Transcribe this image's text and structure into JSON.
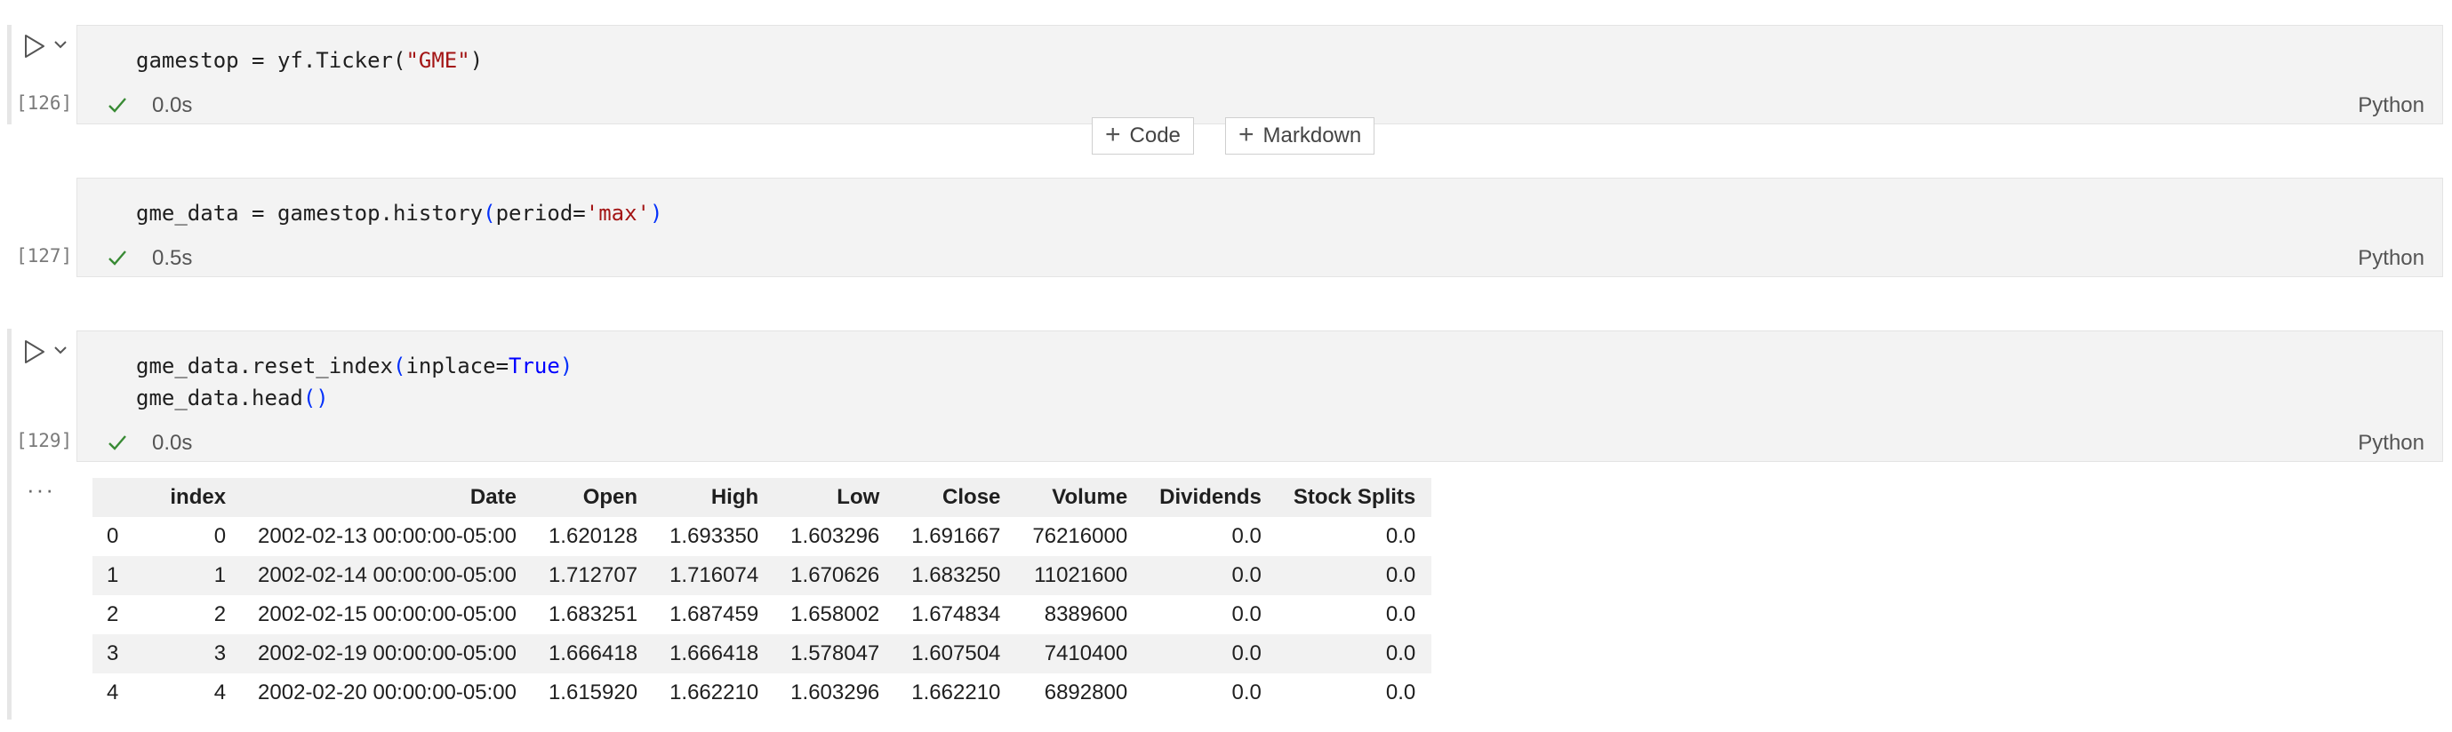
{
  "cells": [
    {
      "exec_count": "[126]",
      "code": [
        [
          "gamestop = yf.Ticker(",
          "\"GME\"",
          ")"
        ]
      ],
      "duration": "0.0s",
      "language": "Python"
    },
    {
      "exec_count": "[127]",
      "code": [
        [
          "gme_data = gamestop.history",
          "(",
          "period=",
          "'max'",
          ")"
        ]
      ],
      "duration": "0.5s",
      "language": "Python"
    },
    {
      "exec_count": "[129]",
      "code": [
        [
          "gme_data.reset_index",
          "(",
          "inplace=",
          "True",
          ")"
        ],
        [
          "gme_data.head",
          "()"
        ]
      ],
      "duration": "0.0s",
      "language": "Python"
    }
  ],
  "toolbar": {
    "add_code_label": "Code",
    "add_markdown_label": "Markdown"
  },
  "output": {
    "more_label": "···",
    "table": {
      "columns": [
        "",
        "index",
        "Date",
        "Open",
        "High",
        "Low",
        "Close",
        "Volume",
        "Dividends",
        "Stock Splits"
      ],
      "rows": [
        [
          "0",
          "0",
          "2002-02-13 00:00:00-05:00",
          "1.620128",
          "1.693350",
          "1.603296",
          "1.691667",
          "76216000",
          "0.0",
          "0.0"
        ],
        [
          "1",
          "1",
          "2002-02-14 00:00:00-05:00",
          "1.712707",
          "1.716074",
          "1.670626",
          "1.683250",
          "11021600",
          "0.0",
          "0.0"
        ],
        [
          "2",
          "2",
          "2002-02-15 00:00:00-05:00",
          "1.683251",
          "1.687459",
          "1.658002",
          "1.674834",
          "8389600",
          "0.0",
          "0.0"
        ],
        [
          "3",
          "3",
          "2002-02-19 00:00:00-05:00",
          "1.666418",
          "1.666418",
          "1.578047",
          "1.607504",
          "7410400",
          "0.0",
          "0.0"
        ],
        [
          "4",
          "4",
          "2002-02-20 00:00:00-05:00",
          "1.615920",
          "1.662210",
          "1.603296",
          "1.662210",
          "6892800",
          "0.0",
          "0.0"
        ]
      ]
    }
  },
  "colors": {
    "string": "#a31515",
    "keyword": "#0000ff",
    "check": "#388a34"
  },
  "icons": {
    "run": "play-triangle-icon",
    "chevron": "chevron-down-icon",
    "check": "checkmark-icon",
    "plus": "plus-icon"
  }
}
